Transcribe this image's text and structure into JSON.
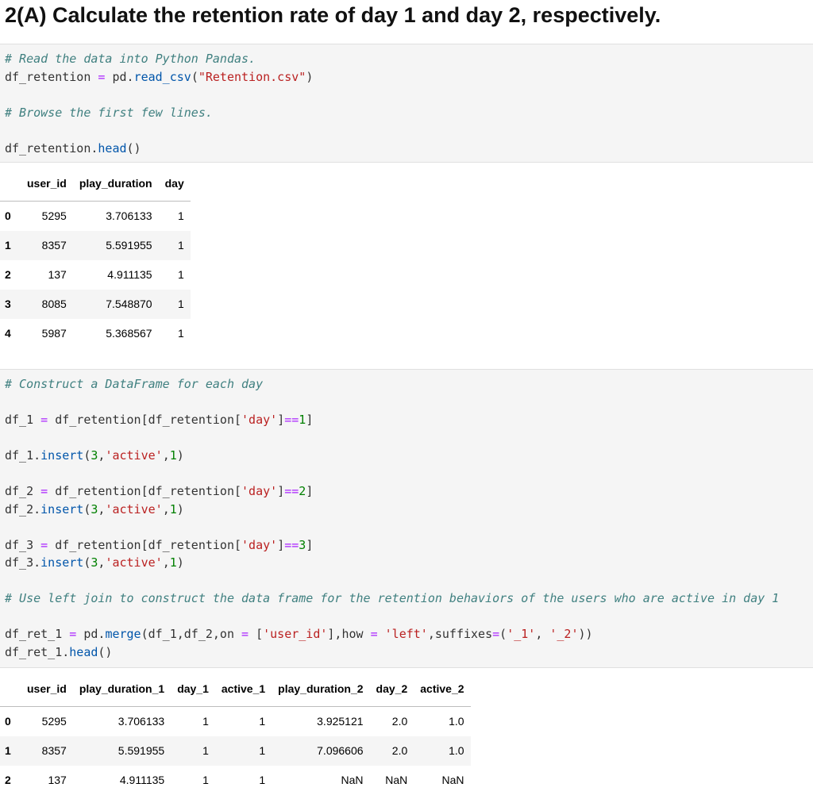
{
  "heading": "2(A) Calculate the retention rate of day 1 and day 2, respectively.",
  "cell1": {
    "comment1": "# Read the data into Python Pandas.",
    "var1": "df_retention",
    "eq": "=",
    "pd_read": "pd.",
    "read_fn": "read_csv",
    "open_paren": "(",
    "filename": "\"Retention.csv\"",
    "close_paren": ")",
    "comment2": "# Browse the first few lines.",
    "head_obj": "df_retention.",
    "head_fn": "head",
    "head_parens": "()"
  },
  "table1": {
    "columns": [
      "user_id",
      "play_duration",
      "day"
    ],
    "rows": [
      {
        "index": "0",
        "cells": [
          "5295",
          "3.706133",
          "1"
        ]
      },
      {
        "index": "1",
        "cells": [
          "8357",
          "5.591955",
          "1"
        ]
      },
      {
        "index": "2",
        "cells": [
          "137",
          "4.911135",
          "1"
        ]
      },
      {
        "index": "3",
        "cells": [
          "8085",
          "7.548870",
          "1"
        ]
      },
      {
        "index": "4",
        "cells": [
          "5987",
          "5.368567",
          "1"
        ]
      }
    ]
  },
  "cell2": {
    "comment1": "# Construct a DataFrame for each day",
    "comment2": "# Use left join to construct the data frame for the retention behaviors of the users who are active in day 1"
  },
  "table2": {
    "columns": [
      "user_id",
      "play_duration_1",
      "day_1",
      "active_1",
      "play_duration_2",
      "day_2",
      "active_2"
    ],
    "rows": [
      {
        "index": "0",
        "cells": [
          "5295",
          "3.706133",
          "1",
          "1",
          "3.925121",
          "2.0",
          "1.0"
        ]
      },
      {
        "index": "1",
        "cells": [
          "8357",
          "5.591955",
          "1",
          "1",
          "7.096606",
          "2.0",
          "1.0"
        ]
      },
      {
        "index": "2",
        "cells": [
          "137",
          "4.911135",
          "1",
          "1",
          "NaN",
          "NaN",
          "NaN"
        ]
      }
    ]
  }
}
